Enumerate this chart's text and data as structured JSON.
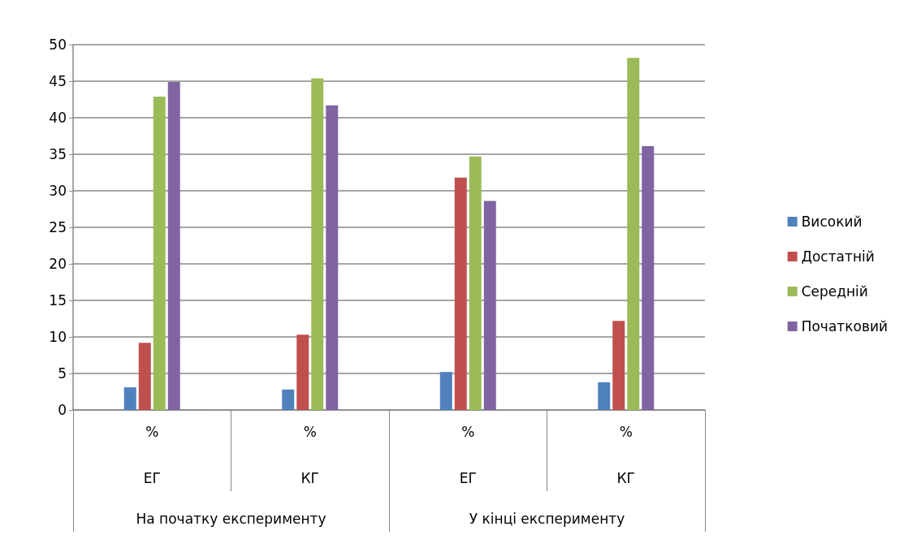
{
  "chart_data": {
    "type": "bar",
    "categories": [
      "%",
      "%",
      "%",
      "%"
    ],
    "annotations": [
      "ЕГ",
      "КГ",
      "ЕГ",
      "КГ",
      "На початку експерименту",
      "У кінці експерименту"
    ],
    "series": [
      {
        "name": "Високий",
        "color": "#4f81bd",
        "values": [
          3.1,
          2.8,
          5.2,
          3.8
        ]
      },
      {
        "name": "Достатній",
        "color": "#c0504d",
        "values": [
          9.2,
          10.3,
          31.8,
          12.2
        ]
      },
      {
        "name": "Середній",
        "color": "#9bbb59",
        "values": [
          42.9,
          45.4,
          34.7,
          48.2
        ]
      },
      {
        "name": "Початковий",
        "color": "#8064a2",
        "values": [
          44.9,
          41.7,
          28.6,
          36.1
        ]
      }
    ],
    "ylim": [
      0,
      50
    ],
    "yticks": [
      0,
      5,
      10,
      15,
      20,
      25,
      30,
      35,
      40,
      45,
      50
    ],
    "grid": "y",
    "legend": "right"
  }
}
